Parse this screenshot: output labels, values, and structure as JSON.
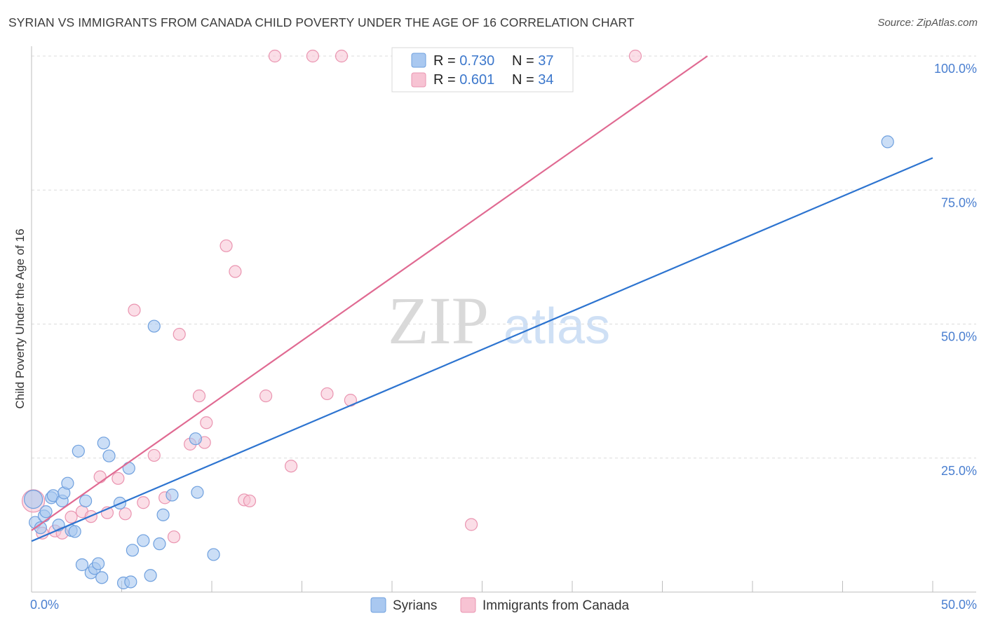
{
  "title": "SYRIAN VS IMMIGRANTS FROM CANADA CHILD POVERTY UNDER THE AGE OF 16 CORRELATION CHART",
  "source": "Source: ZipAtlas.com",
  "watermark": {
    "zip": "ZIP",
    "atlas": "atlas"
  },
  "colors": {
    "syrians_fill": "#a9c8f0",
    "syrians_stroke": "#6fa0de",
    "syrians_line": "#2d74d0",
    "canada_fill": "#f7c3d3",
    "canada_stroke": "#ea94b0",
    "canada_line": "#e06a92",
    "tick_label": "#4a7fd0",
    "grid": "#dcdcdc"
  },
  "legend": {
    "rows": [
      {
        "r_label": "R = ",
        "r_value": "0.730",
        "n_label": "N = ",
        "n_value": "37"
      },
      {
        "r_label": "R = ",
        "r_value": "0.601",
        "n_label": "N = ",
        "n_value": "34"
      }
    ]
  },
  "chart_data": {
    "type": "scatter",
    "title": "SYRIAN VS IMMIGRANTS FROM CANADA CHILD POVERTY UNDER THE AGE OF 16 CORRELATION CHART",
    "xlabel": "",
    "ylabel": "Child Poverty Under the Age of 16",
    "xlim": [
      0,
      50
    ],
    "ylim": [
      0,
      100
    ],
    "x_tick_labels": [
      {
        "value": 0,
        "label": "0.0%"
      },
      {
        "value": 50,
        "label": "50.0%"
      }
    ],
    "y_tick_labels": [
      {
        "value": 25,
        "label": "25.0%"
      },
      {
        "value": 50,
        "label": "50.0%"
      },
      {
        "value": 75,
        "label": "75.0%"
      },
      {
        "value": 100,
        "label": "100.0%"
      }
    ],
    "grid": true,
    "legend_position": "top-center",
    "series": [
      {
        "name": "Syrians",
        "r": 0.73,
        "n": 37,
        "trendline": [
          [
            0,
            9.5
          ],
          [
            50,
            81
          ]
        ],
        "points": [
          [
            0.1,
            17.3
          ],
          [
            0.2,
            13.0
          ],
          [
            0.5,
            12.0
          ],
          [
            0.7,
            14.2
          ],
          [
            0.8,
            15.0
          ],
          [
            1.1,
            17.6
          ],
          [
            1.2,
            18.0
          ],
          [
            1.5,
            12.5
          ],
          [
            1.7,
            17.0
          ],
          [
            1.8,
            18.5
          ],
          [
            2.0,
            20.3
          ],
          [
            2.2,
            11.5
          ],
          [
            2.4,
            11.3
          ],
          [
            2.6,
            26.3
          ],
          [
            2.8,
            5.1
          ],
          [
            3.0,
            17.0
          ],
          [
            3.3,
            3.6
          ],
          [
            3.5,
            4.4
          ],
          [
            3.7,
            5.3
          ],
          [
            3.9,
            2.7
          ],
          [
            4.0,
            27.8
          ],
          [
            4.3,
            25.4
          ],
          [
            4.9,
            16.6
          ],
          [
            5.1,
            1.7
          ],
          [
            5.4,
            23.1
          ],
          [
            5.5,
            1.9
          ],
          [
            5.6,
            7.8
          ],
          [
            6.2,
            9.6
          ],
          [
            6.6,
            3.1
          ],
          [
            6.8,
            49.6
          ],
          [
            7.1,
            9.0
          ],
          [
            7.3,
            14.4
          ],
          [
            7.8,
            18.1
          ],
          [
            9.1,
            28.6
          ],
          [
            9.2,
            18.6
          ],
          [
            10.1,
            7.0
          ],
          [
            47.5,
            84.0
          ]
        ]
      },
      {
        "name": "Immigrants from Canada",
        "r": 0.601,
        "n": 34,
        "trendline": [
          [
            0,
            11.5
          ],
          [
            37.5,
            100
          ]
        ],
        "points": [
          [
            0.1,
            17.0
          ],
          [
            0.6,
            11.0
          ],
          [
            1.3,
            11.4
          ],
          [
            1.7,
            11.0
          ],
          [
            2.2,
            14.0
          ],
          [
            2.8,
            15.0
          ],
          [
            3.3,
            14.1
          ],
          [
            3.8,
            21.5
          ],
          [
            4.2,
            14.8
          ],
          [
            4.8,
            21.2
          ],
          [
            5.2,
            14.6
          ],
          [
            5.7,
            52.6
          ],
          [
            6.2,
            16.7
          ],
          [
            6.8,
            25.5
          ],
          [
            7.4,
            17.6
          ],
          [
            7.9,
            10.3
          ],
          [
            8.2,
            48.1
          ],
          [
            8.8,
            27.6
          ],
          [
            9.3,
            36.6
          ],
          [
            9.6,
            27.9
          ],
          [
            9.7,
            31.6
          ],
          [
            10.8,
            64.6
          ],
          [
            11.3,
            59.8
          ],
          [
            11.8,
            17.2
          ],
          [
            12.1,
            17.0
          ],
          [
            13.0,
            36.6
          ],
          [
            13.5,
            100
          ],
          [
            14.4,
            23.5
          ],
          [
            15.6,
            100
          ],
          [
            16.4,
            37.0
          ],
          [
            17.2,
            100
          ],
          [
            17.7,
            35.8
          ],
          [
            24.4,
            12.6
          ],
          [
            33.5,
            100
          ]
        ]
      }
    ]
  },
  "bottom_legend": {
    "items": [
      {
        "label": "Syrians"
      },
      {
        "label": "Immigrants from Canada"
      }
    ]
  }
}
